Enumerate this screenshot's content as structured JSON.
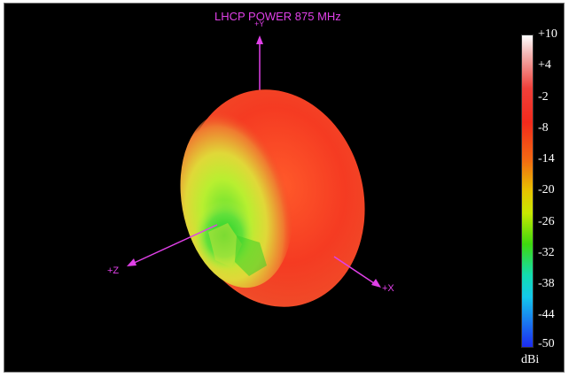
{
  "title": "LHCP POWER 875  MHz",
  "axes": {
    "y": "+Y",
    "z": "+Z",
    "x": "+X"
  },
  "colorbar": {
    "ticks": [
      "+10",
      "+4",
      "-2",
      "-8",
      "-14",
      "-20",
      "-26",
      "-32",
      "-38",
      "-44",
      "-50"
    ],
    "unit": "dBi"
  },
  "colors": {
    "axis": "#e040e8",
    "background": "#000000"
  }
}
